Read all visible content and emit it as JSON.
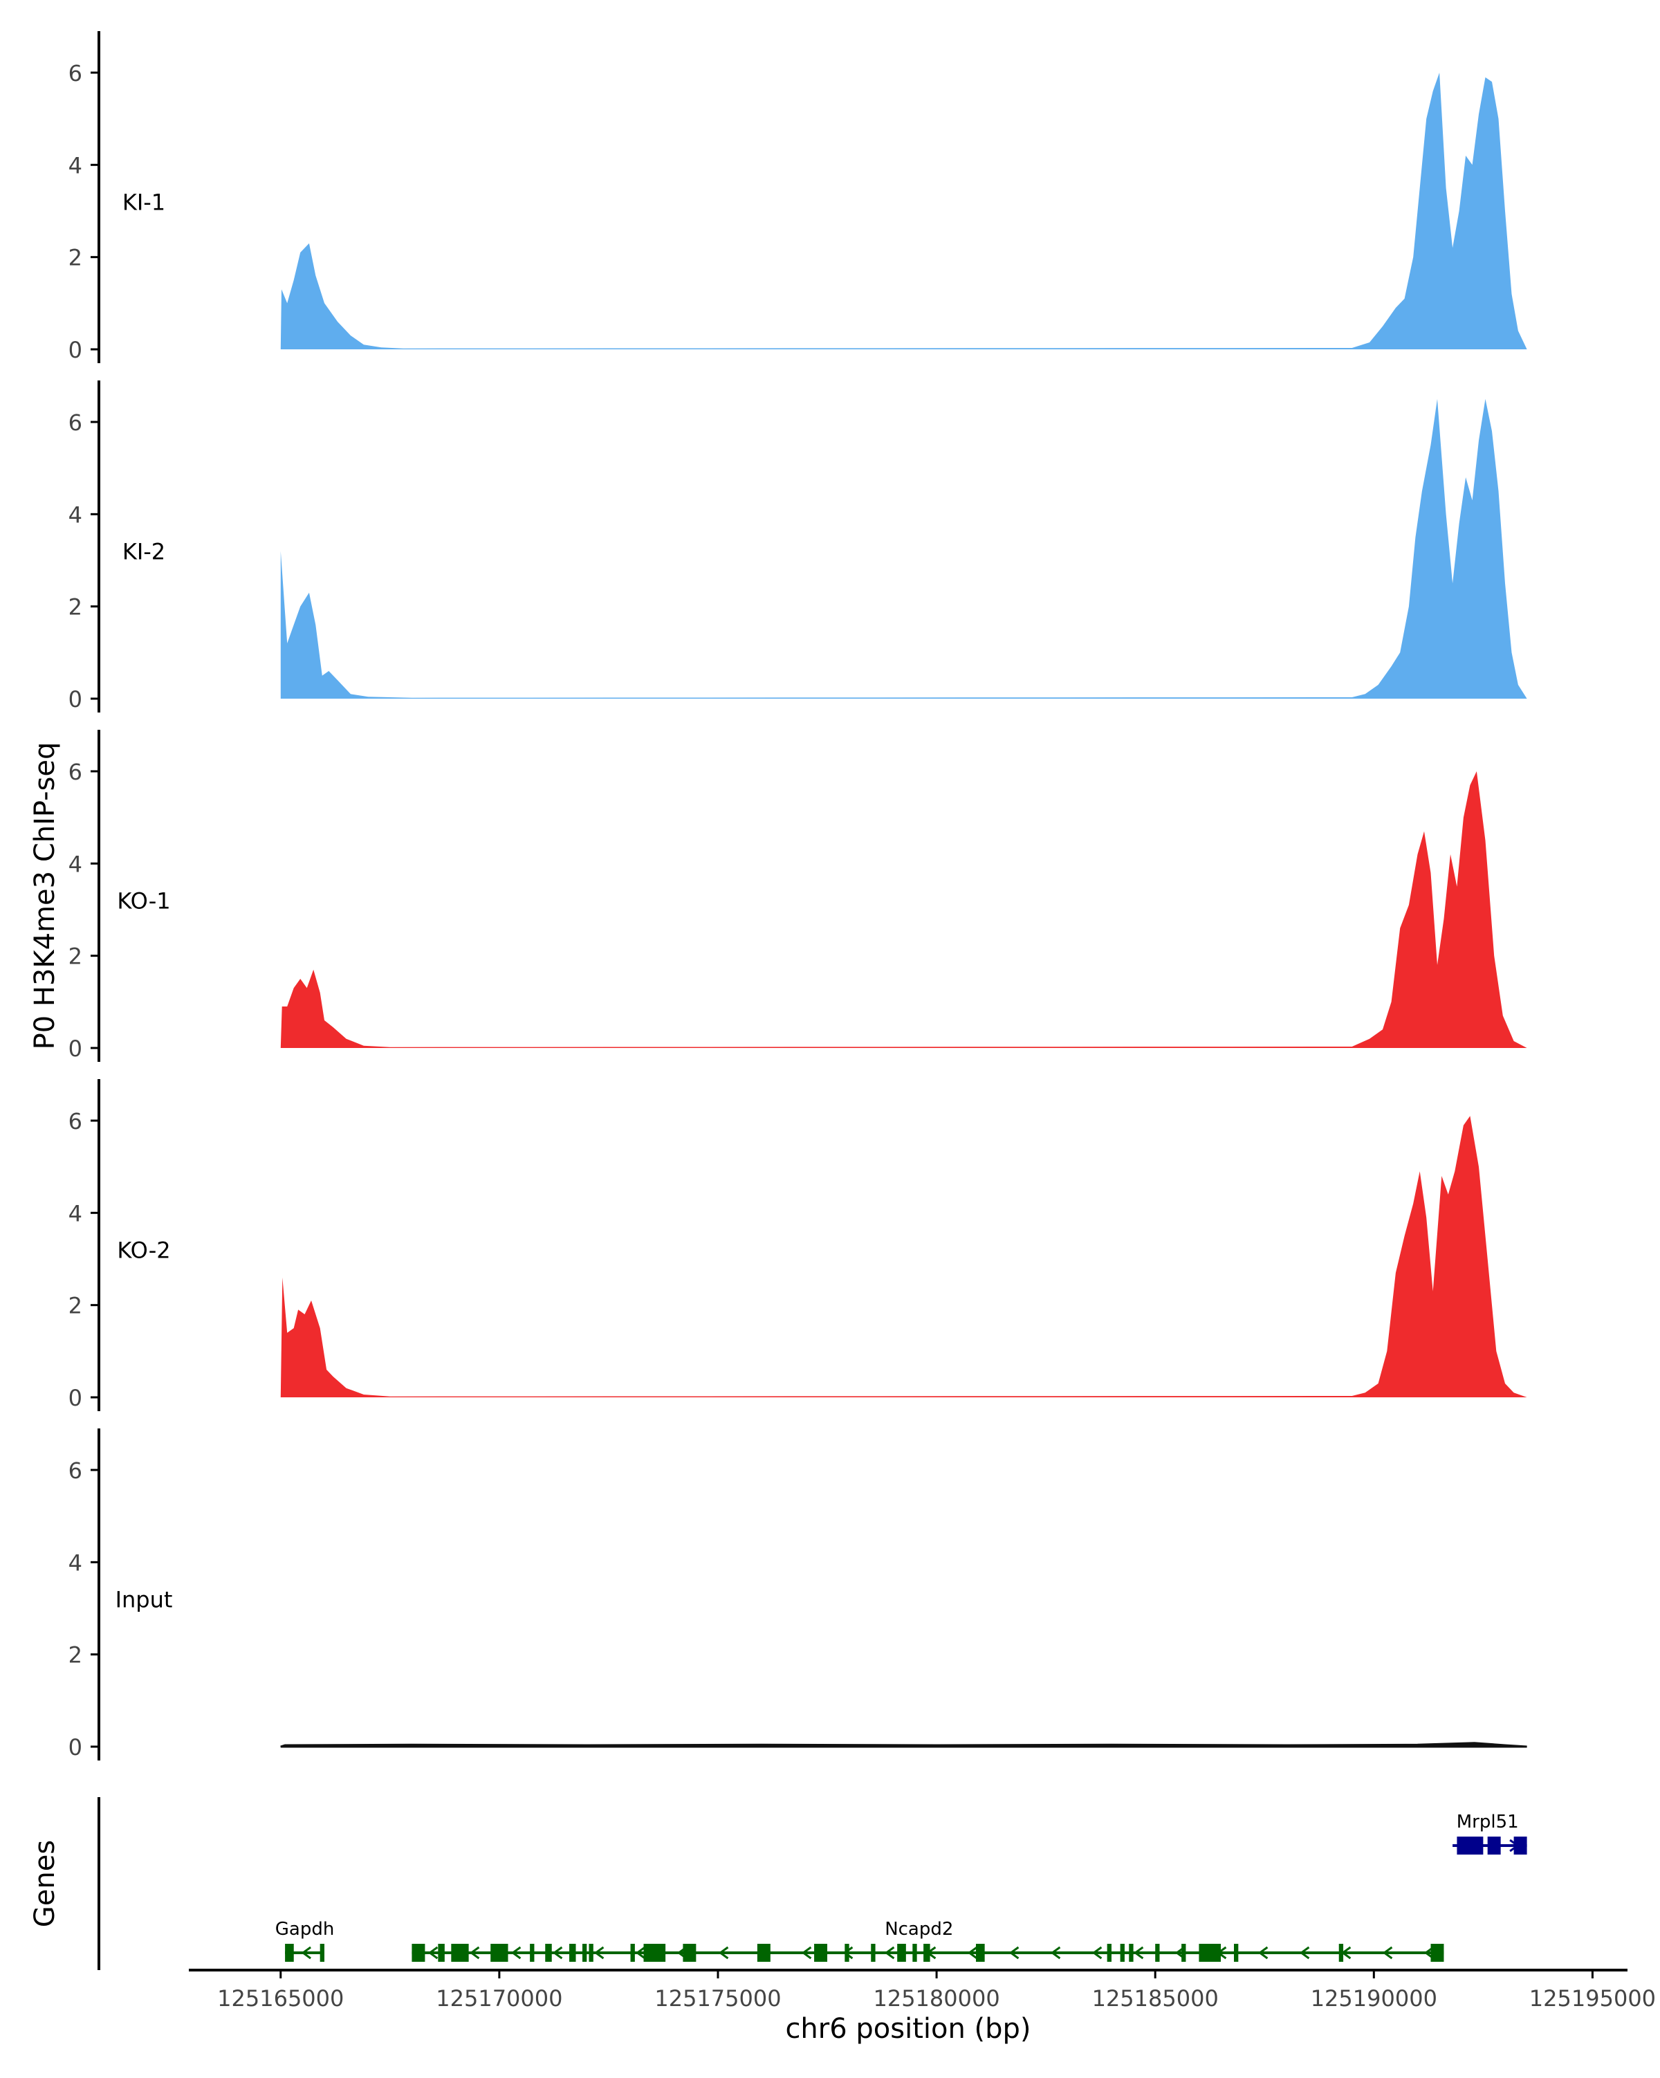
{
  "chart_data": {
    "type": "area",
    "ylabel": "P0 H3K4me3 ChIP-seq",
    "xlabel": "chr6 position (bp)",
    "ylim": [
      0,
      6.9
    ],
    "y_ticks": [
      0,
      2,
      4,
      6
    ],
    "y_tick_labels": [
      "0",
      "2",
      "4",
      "6"
    ],
    "x_range": [
      125162900,
      125195800
    ],
    "x_ticks": [
      125165000,
      125170000,
      125175000,
      125180000,
      125185000,
      125190000,
      125195000
    ],
    "x_tick_labels": [
      "125165000",
      "125170000",
      "125175000",
      "125180000",
      "125185000",
      "125190000",
      "125195000"
    ],
    "x_data_range": [
      125165000,
      125193500
    ],
    "colors": {
      "KI": "#5fadee",
      "KO": "#ef2b2d",
      "Input": "#111111",
      "Gapdh": "#006400",
      "Ncapd2": "#006400",
      "Mrpl51": "#00008b",
      "axis": "#000000"
    },
    "tracks": [
      {
        "label": "KI-1",
        "color": "#5fadee",
        "profile": [
          [
            125165000,
            0
          ],
          [
            125165020,
            1.3
          ],
          [
            125165150,
            1.0
          ],
          [
            125165300,
            1.5
          ],
          [
            125165450,
            2.1
          ],
          [
            125165650,
            2.3
          ],
          [
            125165800,
            1.6
          ],
          [
            125166000,
            1.0
          ],
          [
            125166300,
            0.6
          ],
          [
            125166600,
            0.3
          ],
          [
            125166900,
            0.1
          ],
          [
            125167300,
            0.04
          ],
          [
            125167800,
            0.02
          ],
          [
            125189500,
            0.03
          ],
          [
            125189900,
            0.15
          ],
          [
            125190200,
            0.5
          ],
          [
            125190500,
            0.9
          ],
          [
            125190700,
            1.1
          ],
          [
            125190900,
            2.0
          ],
          [
            125191050,
            3.5
          ],
          [
            125191200,
            5.0
          ],
          [
            125191350,
            5.6
          ],
          [
            125191500,
            6.0
          ],
          [
            125191650,
            3.5
          ],
          [
            125191800,
            2.2
          ],
          [
            125191950,
            3.0
          ],
          [
            125192100,
            4.2
          ],
          [
            125192250,
            4.0
          ],
          [
            125192400,
            5.1
          ],
          [
            125192550,
            5.9
          ],
          [
            125192700,
            5.8
          ],
          [
            125192850,
            5.0
          ],
          [
            125193000,
            3.0
          ],
          [
            125193150,
            1.2
          ],
          [
            125193300,
            0.4
          ],
          [
            125193450,
            0.1
          ],
          [
            125193500,
            0
          ]
        ]
      },
      {
        "label": "KI-2",
        "color": "#5fadee",
        "profile": [
          [
            125165000,
            3.2
          ],
          [
            125165150,
            1.2
          ],
          [
            125165300,
            1.6
          ],
          [
            125165450,
            2.0
          ],
          [
            125165650,
            2.3
          ],
          [
            125165800,
            1.6
          ],
          [
            125165950,
            0.5
          ],
          [
            125166100,
            0.6
          ],
          [
            125166300,
            0.4
          ],
          [
            125166600,
            0.1
          ],
          [
            125167000,
            0.04
          ],
          [
            125168000,
            0.02
          ],
          [
            125189500,
            0.03
          ],
          [
            125189800,
            0.1
          ],
          [
            125190100,
            0.3
          ],
          [
            125190400,
            0.7
          ],
          [
            125190600,
            1.0
          ],
          [
            125190800,
            2.0
          ],
          [
            125190950,
            3.5
          ],
          [
            125191100,
            4.5
          ],
          [
            125191300,
            5.5
          ],
          [
            125191450,
            6.5
          ],
          [
            125191650,
            4.0
          ],
          [
            125191800,
            2.5
          ],
          [
            125191950,
            3.8
          ],
          [
            125192100,
            4.8
          ],
          [
            125192250,
            4.3
          ],
          [
            125192400,
            5.6
          ],
          [
            125192550,
            6.5
          ],
          [
            125192700,
            5.8
          ],
          [
            125192850,
            4.5
          ],
          [
            125193000,
            2.5
          ],
          [
            125193150,
            1.0
          ],
          [
            125193300,
            0.3
          ],
          [
            125193500,
            0
          ]
        ]
      },
      {
        "label": "KO-1",
        "color": "#ef2b2d",
        "profile": [
          [
            125165000,
            0
          ],
          [
            125165030,
            0.9
          ],
          [
            125165150,
            0.9
          ],
          [
            125165300,
            1.3
          ],
          [
            125165450,
            1.5
          ],
          [
            125165600,
            1.3
          ],
          [
            125165750,
            1.7
          ],
          [
            125165900,
            1.2
          ],
          [
            125166000,
            0.6
          ],
          [
            125166200,
            0.45
          ],
          [
            125166500,
            0.2
          ],
          [
            125166900,
            0.05
          ],
          [
            125167500,
            0.02
          ],
          [
            125189500,
            0.03
          ],
          [
            125189900,
            0.2
          ],
          [
            125190200,
            0.4
          ],
          [
            125190400,
            1.0
          ],
          [
            125190600,
            2.6
          ],
          [
            125190800,
            3.1
          ],
          [
            125191000,
            4.2
          ],
          [
            125191150,
            4.7
          ],
          [
            125191300,
            3.8
          ],
          [
            125191450,
            1.8
          ],
          [
            125191600,
            2.8
          ],
          [
            125191750,
            4.2
          ],
          [
            125191900,
            3.5
          ],
          [
            125192050,
            5.0
          ],
          [
            125192200,
            5.7
          ],
          [
            125192350,
            6.0
          ],
          [
            125192550,
            4.5
          ],
          [
            125192750,
            2.0
          ],
          [
            125192950,
            0.7
          ],
          [
            125193200,
            0.15
          ],
          [
            125193500,
            0
          ]
        ]
      },
      {
        "label": "KO-2",
        "color": "#ef2b2d",
        "profile": [
          [
            125165000,
            0
          ],
          [
            125165040,
            2.6
          ],
          [
            125165150,
            1.4
          ],
          [
            125165300,
            1.5
          ],
          [
            125165400,
            1.9
          ],
          [
            125165550,
            1.8
          ],
          [
            125165700,
            2.1
          ],
          [
            125165900,
            1.5
          ],
          [
            125166050,
            0.6
          ],
          [
            125166200,
            0.45
          ],
          [
            125166500,
            0.2
          ],
          [
            125166900,
            0.06
          ],
          [
            125167500,
            0.02
          ],
          [
            125189500,
            0.03
          ],
          [
            125189800,
            0.1
          ],
          [
            125190100,
            0.3
          ],
          [
            125190300,
            1.0
          ],
          [
            125190500,
            2.7
          ],
          [
            125190700,
            3.5
          ],
          [
            125190900,
            4.2
          ],
          [
            125191050,
            4.9
          ],
          [
            125191200,
            3.9
          ],
          [
            125191350,
            2.3
          ],
          [
            125191550,
            4.8
          ],
          [
            125191700,
            4.4
          ],
          [
            125191850,
            4.9
          ],
          [
            125192050,
            5.9
          ],
          [
            125192200,
            6.1
          ],
          [
            125192400,
            5.0
          ],
          [
            125192600,
            3.0
          ],
          [
            125192800,
            1.0
          ],
          [
            125193000,
            0.3
          ],
          [
            125193200,
            0.1
          ],
          [
            125193500,
            0
          ]
        ]
      },
      {
        "label": "Input",
        "color": "#111111",
        "profile": [
          [
            125165000,
            0
          ],
          [
            125165100,
            0.03
          ],
          [
            125168000,
            0.04
          ],
          [
            125172000,
            0.03
          ],
          [
            125176000,
            0.04
          ],
          [
            125180000,
            0.03
          ],
          [
            125184000,
            0.04
          ],
          [
            125188000,
            0.03
          ],
          [
            125191000,
            0.04
          ],
          [
            125192300,
            0.08
          ],
          [
            125193000,
            0.03
          ],
          [
            125193500,
            0
          ]
        ]
      }
    ],
    "genes_track": {
      "label": "Genes",
      "genes": [
        {
          "name": "Gapdh",
          "start": 125165100,
          "end": 125166000,
          "strand": "-",
          "row": 0,
          "exons": [
            [
              125165100,
              125165300
            ],
            [
              125165900,
              125166000
            ]
          ]
        },
        {
          "name": "Ncapd2",
          "start": 125168000,
          "end": 125191600,
          "strand": "-",
          "row": 0,
          "exons": [
            [
              125168000,
              125168300
            ],
            [
              125168600,
              125168750
            ],
            [
              125168900,
              125169300
            ],
            [
              125169800,
              125170200
            ],
            [
              125170700,
              125170800
            ],
            [
              125171050,
              125171200
            ],
            [
              125171600,
              125171750
            ],
            [
              125171900,
              125172000
            ],
            [
              125172050,
              125172150
            ],
            [
              125173000,
              125173100
            ],
            [
              125173300,
              125173800
            ],
            [
              125174200,
              125174500
            ],
            [
              125175900,
              125176200
            ],
            [
              125177200,
              125177500
            ],
            [
              125177900,
              125178000
            ],
            [
              125178500,
              125178600
            ],
            [
              125179100,
              125179300
            ],
            [
              125179450,
              125179550
            ],
            [
              125179700,
              125179850
            ],
            [
              125180900,
              125181100
            ],
            [
              125183900,
              125184000
            ],
            [
              125184200,
              125184300
            ],
            [
              125184400,
              125184500
            ],
            [
              125185000,
              125185100
            ],
            [
              125185600,
              125185700
            ],
            [
              125186000,
              125186500
            ],
            [
              125186800,
              125186900
            ],
            [
              125189200,
              125189300
            ],
            [
              125191300,
              125191600
            ]
          ]
        },
        {
          "name": "Mrpl51",
          "start": 125191800,
          "end": 125193500,
          "strand": "+",
          "row": 1,
          "exons": [
            [
              125191900,
              125192500
            ],
            [
              125192600,
              125192900
            ],
            [
              125193200,
              125193500
            ]
          ]
        }
      ]
    }
  }
}
